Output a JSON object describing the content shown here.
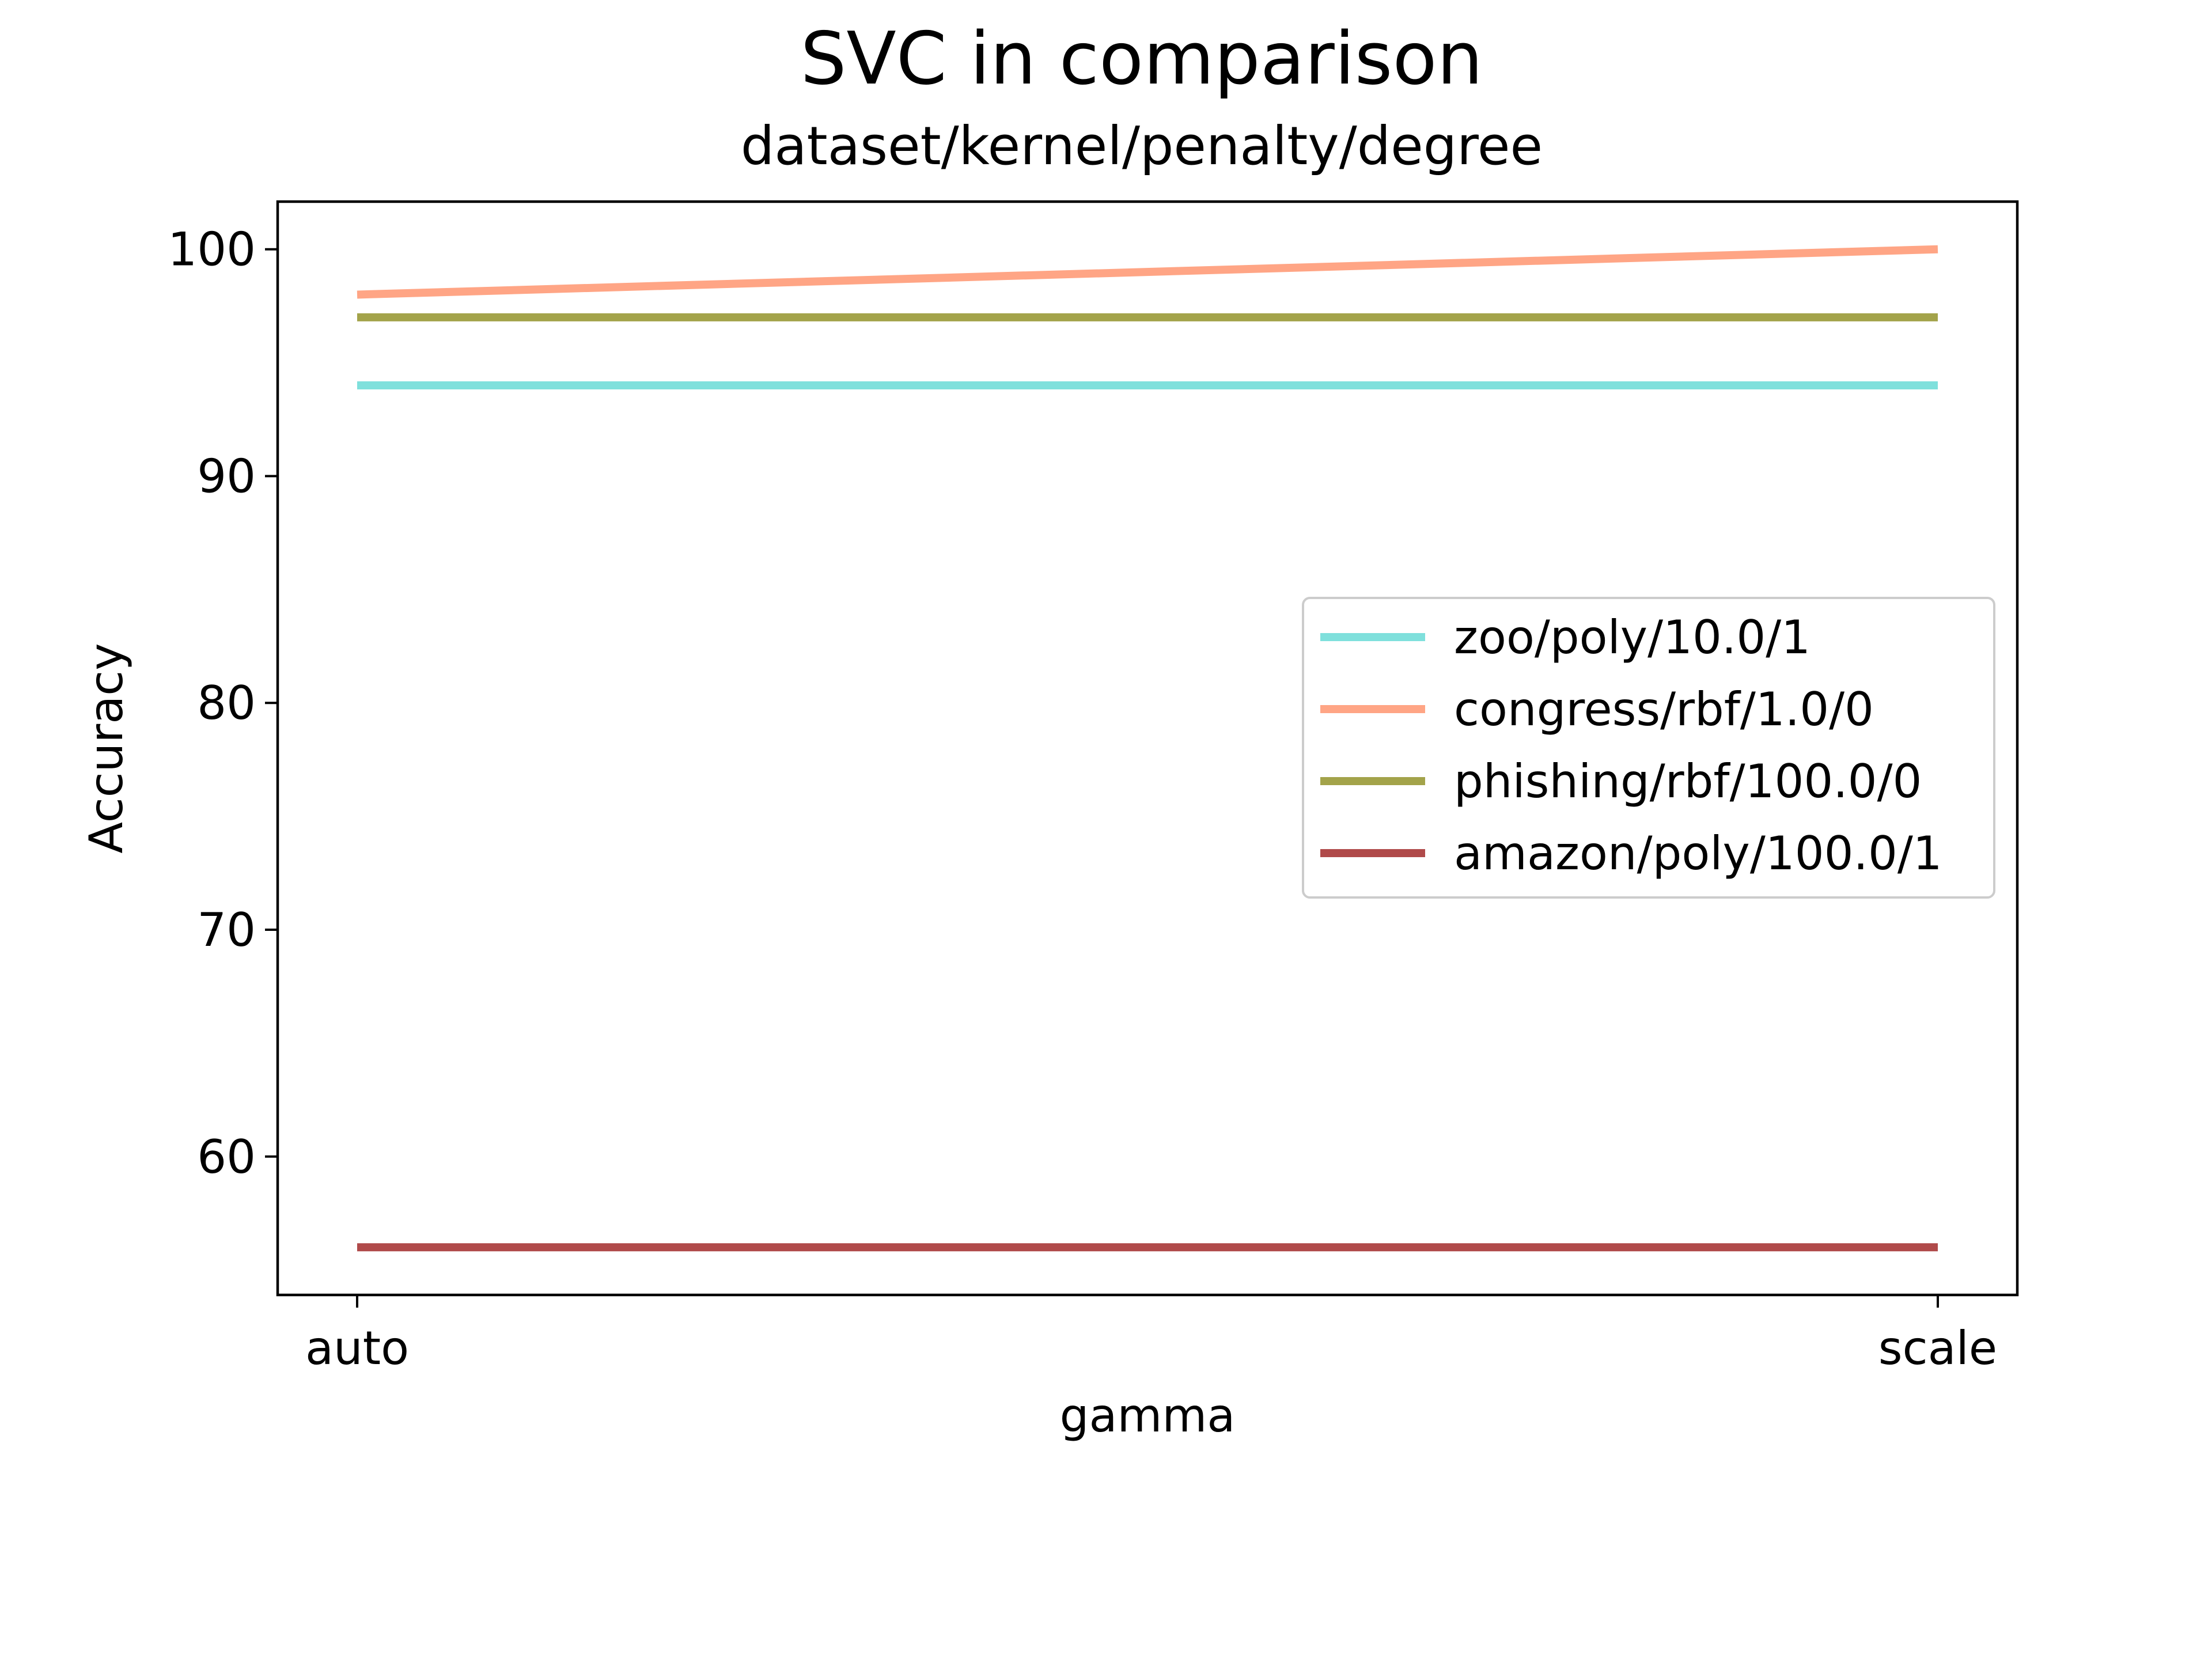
{
  "chart_data": {
    "type": "line",
    "title": "SVC in comparison",
    "subtitle": "dataset/kernel/penalty/degree",
    "xlabel": "gamma",
    "ylabel": "Accuracy",
    "categories": [
      "auto",
      "scale"
    ],
    "yticks": [
      60,
      70,
      80,
      90,
      100
    ],
    "ylim": [
      53.9,
      102.1
    ],
    "grid": false,
    "legend_position": "center-right",
    "series": [
      {
        "name": "zoo/poly/10.0/1",
        "values": [
          94,
          94
        ],
        "color": "#7fe0dc"
      },
      {
        "name": "congress/rbf/1.0/0",
        "values": [
          98,
          100
        ],
        "color": "#ffa585"
      },
      {
        "name": "phishing/rbf/100.0/0",
        "values": [
          97,
          97
        ],
        "color": "#a3a34a"
      },
      {
        "name": "amazon/poly/100.0/1",
        "values": [
          56,
          56
        ],
        "color": "#b04a4a"
      }
    ]
  }
}
